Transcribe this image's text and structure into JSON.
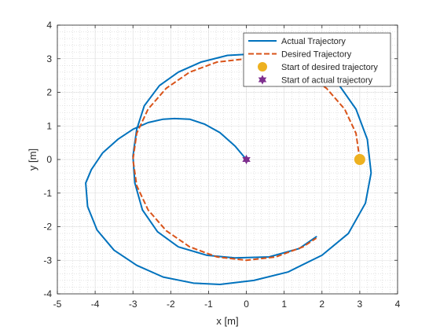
{
  "chart_data": {
    "type": "line",
    "xlabel": "x [m]",
    "ylabel": "y [m]",
    "xlim": [
      -5,
      4
    ],
    "ylim": [
      -4,
      4
    ],
    "xticks": [
      -5,
      -4,
      -3,
      -2,
      -1,
      0,
      1,
      2,
      3,
      4
    ],
    "yticks": [
      -4,
      -3,
      -2,
      -1,
      0,
      1,
      2,
      3,
      4
    ],
    "grid": "major and minor",
    "legend_location": "top-right",
    "series": [
      {
        "name": "Actual Trajectory",
        "style": "solid",
        "color": "#0072BD",
        "x": [
          0.0,
          -0.3,
          -0.7,
          -1.1,
          -1.5,
          -1.9,
          -2.2,
          -2.6,
          -3.0,
          -3.4,
          -3.8,
          -4.1,
          -4.25,
          -4.2,
          -3.95,
          -3.5,
          -2.9,
          -2.2,
          -1.4,
          -0.7,
          0.2,
          1.1,
          2.0,
          2.7,
          3.15,
          3.3,
          3.2,
          2.9,
          2.4,
          1.8,
          1.1,
          0.3,
          -0.5,
          -1.2,
          -1.8,
          -2.3,
          -2.7,
          -2.9,
          -3.0,
          -2.95,
          -2.75,
          -2.35,
          -1.8,
          -1.05,
          -0.3,
          0.6,
          1.4,
          1.85
        ],
        "y": [
          0.0,
          0.4,
          0.8,
          1.05,
          1.2,
          1.22,
          1.2,
          1.1,
          0.9,
          0.6,
          0.2,
          -0.3,
          -0.7,
          -1.4,
          -2.1,
          -2.7,
          -3.15,
          -3.5,
          -3.68,
          -3.72,
          -3.6,
          -3.35,
          -2.85,
          -2.2,
          -1.3,
          -0.4,
          0.6,
          1.5,
          2.3,
          2.8,
          3.05,
          3.15,
          3.1,
          2.9,
          2.6,
          2.2,
          1.6,
          0.9,
          0.1,
          -0.7,
          -1.5,
          -2.15,
          -2.6,
          -2.85,
          -2.93,
          -2.9,
          -2.65,
          -2.3
        ]
      },
      {
        "name": "Desired Trajectory",
        "style": "dashed",
        "color": "#D95319",
        "x": [
          3.0,
          2.9,
          2.6,
          2.12,
          1.5,
          0.78,
          0.0,
          -0.78,
          -1.5,
          -2.12,
          -2.6,
          -2.9,
          -3.0,
          -2.9,
          -2.6,
          -2.12,
          -1.5,
          -0.78,
          0.0,
          0.78,
          1.5,
          1.85
        ],
        "y": [
          0.0,
          0.78,
          1.5,
          2.12,
          2.6,
          2.9,
          3.0,
          2.9,
          2.6,
          2.12,
          1.5,
          0.78,
          0.0,
          -0.78,
          -1.5,
          -2.12,
          -2.6,
          -2.9,
          -3.0,
          -2.9,
          -2.6,
          -2.34
        ]
      }
    ],
    "markers": [
      {
        "name": "Start of desired trajectory",
        "x": 3,
        "y": 0,
        "shape": "circle",
        "color": "#EDB120"
      },
      {
        "name": "Start of actual trajectory",
        "x": 0,
        "y": 0,
        "shape": "star",
        "color": "#7E2F8E"
      }
    ]
  }
}
